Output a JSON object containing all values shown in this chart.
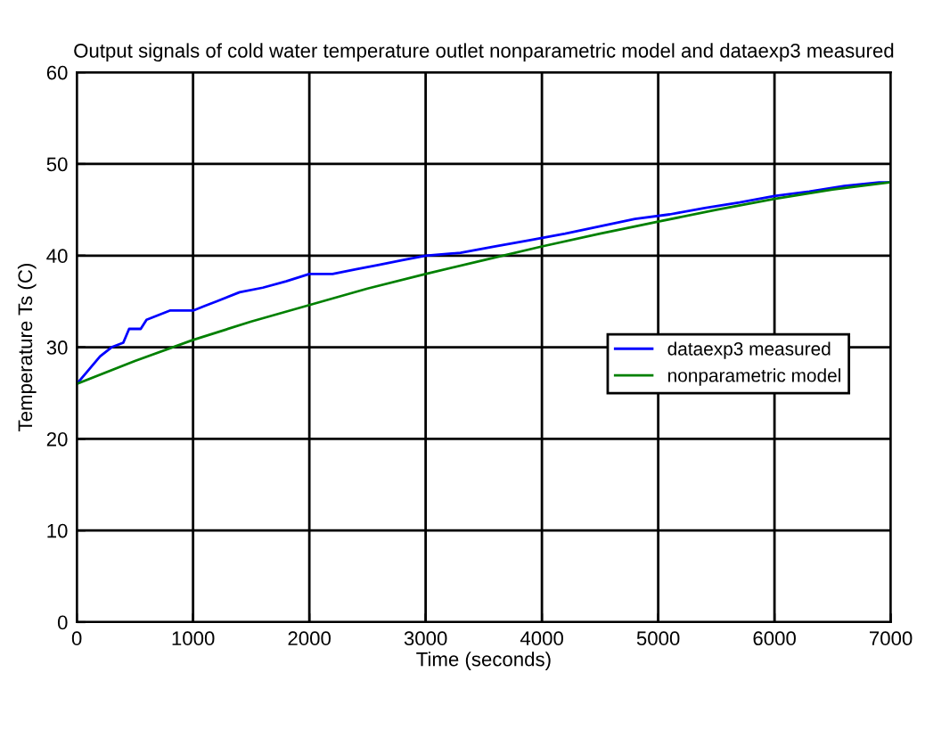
{
  "chart_data": {
    "type": "line",
    "title": "Output signals of cold water temperature outlet nonparametric model and dataexp3 measured",
    "xlabel": "Time (seconds)",
    "ylabel": "Temperature Ts (C)",
    "series": [
      {
        "name": "dataexp3 measured",
        "color": "#0000ff",
        "x": [
          0,
          100,
          200,
          300,
          400,
          450,
          550,
          600,
          800,
          1000,
          1100,
          1200,
          1400,
          1600,
          1800,
          2000,
          2200,
          2400,
          2600,
          2800,
          3000,
          3300,
          3600,
          3900,
          4200,
          4500,
          4800,
          5100,
          5400,
          5700,
          6000,
          6300,
          6600,
          6900,
          7000
        ],
        "values": [
          26,
          27.5,
          29,
          30,
          30.5,
          32,
          32,
          33,
          34,
          34,
          34.5,
          35,
          36,
          36.5,
          37.2,
          38,
          38,
          38.5,
          39,
          39.5,
          40,
          40.3,
          41,
          41.7,
          42.4,
          43.2,
          44,
          44.5,
          45.2,
          45.8,
          46.5,
          47,
          47.6,
          48,
          48
        ]
      },
      {
        "name": "nonparametric model",
        "color": "#008000",
        "x": [
          0,
          500,
          1000,
          1500,
          2000,
          2500,
          3000,
          3500,
          4000,
          4500,
          5000,
          5500,
          6000,
          6500,
          7000
        ],
        "values": [
          26,
          28.5,
          30.8,
          32.8,
          34.6,
          36.4,
          38,
          39.5,
          41,
          42.4,
          43.7,
          45,
          46.2,
          47.2,
          48
        ]
      }
    ],
    "xlim": [
      0,
      7000
    ],
    "xticks": [
      0,
      1000,
      2000,
      3000,
      4000,
      5000,
      6000,
      7000
    ],
    "ylim": [
      0,
      60
    ],
    "yticks": [
      0,
      10,
      20,
      30,
      40,
      50,
      60
    ],
    "grid": true,
    "legend": "right"
  }
}
